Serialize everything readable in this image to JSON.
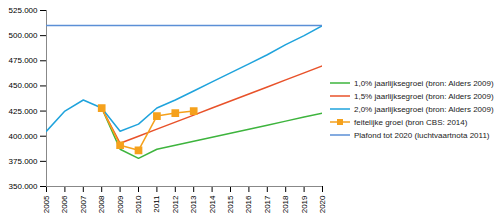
{
  "chart_data": {
    "type": "line",
    "x": [
      2005,
      2006,
      2007,
      2008,
      2009,
      2010,
      2011,
      2012,
      2013,
      2014,
      2015,
      2016,
      2017,
      2018,
      2019,
      2020
    ],
    "xlim": [
      2005,
      2020
    ],
    "xticks": [
      2005,
      2006,
      2007,
      2008,
      2009,
      2010,
      2011,
      2012,
      2013,
      2014,
      2015,
      2016,
      2017,
      2018,
      2019,
      2020
    ],
    "ylim": [
      350000,
      525000
    ],
    "yticks": [
      {
        "value": 350000,
        "label": "350.000"
      },
      {
        "value": 375000,
        "label": "375.000"
      },
      {
        "value": 400000,
        "label": "400.000"
      },
      {
        "value": 425000,
        "label": "425.000"
      },
      {
        "value": 450000,
        "label": "450.000"
      },
      {
        "value": 475000,
        "label": "475.000"
      },
      {
        "value": 500000,
        "label": "500.000"
      },
      {
        "value": 525000,
        "label": "525.000"
      }
    ],
    "grid": false,
    "legend": "right",
    "series": [
      {
        "name": "1,0% jaarlijksegroei (bron: Alders 2009)",
        "color": "#3db43d",
        "marker": "none",
        "line_style": "solid",
        "values": [
          null,
          null,
          null,
          428000,
          387000,
          378000,
          387000,
          391000,
          395000,
          399000,
          403000,
          407000,
          411000,
          415000,
          419000,
          423000
        ]
      },
      {
        "name": "1,5% jaarlijksegroei (bron: Alders 2009)",
        "color": "#e8522a",
        "marker": "none",
        "line_style": "solid",
        "values": [
          null,
          null,
          null,
          428000,
          393000,
          400000,
          407000,
          414000,
          421000,
          428000,
          435000,
          442000,
          449000,
          456000,
          463000,
          470000
        ]
      },
      {
        "name": "2,0% jaarlijksegroei (bron: Alders 2009)",
        "color": "#1fa3dc",
        "marker": "none",
        "line_style": "solid",
        "values": [
          405000,
          425000,
          436000,
          428000,
          405000,
          412000,
          428000,
          436000,
          445000,
          454000,
          463000,
          472000,
          481000,
          491000,
          500000,
          510000
        ]
      },
      {
        "name": "feitelijke groei (bron CBS: 2014)",
        "color": "#f5a11c",
        "marker": "square",
        "line_style": "solid",
        "values": [
          null,
          null,
          null,
          428000,
          391000,
          386000,
          420000,
          423000,
          425000,
          null,
          null,
          null,
          null,
          null,
          null,
          null
        ]
      },
      {
        "name": "Plafond tot 2020 (luchtvaartnota 2011)",
        "color": "#5b8fd6",
        "marker": "none",
        "line_style": "solid",
        "values": [
          510000,
          510000,
          510000,
          510000,
          510000,
          510000,
          510000,
          510000,
          510000,
          510000,
          510000,
          510000,
          510000,
          510000,
          510000,
          510000
        ]
      }
    ]
  }
}
